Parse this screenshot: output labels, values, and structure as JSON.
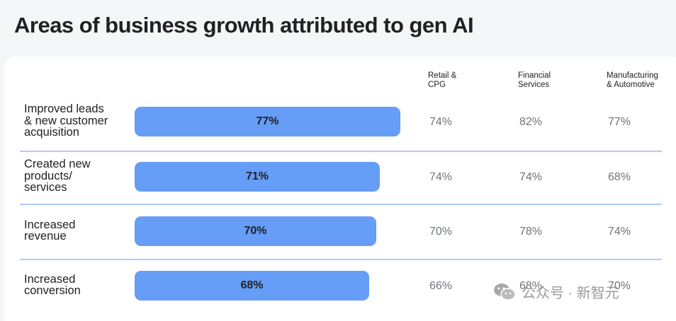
{
  "title": "Areas of business growth attributed to gen AI",
  "chart_data": {
    "type": "bar",
    "title": "Areas of business growth attributed to gen AI",
    "orientation": "horizontal",
    "categories": [
      "Improved leads\n& new customer\nacquisition",
      "Created new\nproducts/\nservices",
      "Increased\nrevenue",
      "Increased\nconversion"
    ],
    "values": [
      77,
      71,
      70,
      68
    ],
    "value_labels": [
      "77%",
      "71%",
      "70%",
      "68%"
    ],
    "xlim": [
      0,
      100
    ],
    "bar_color": "#669df6",
    "segment_columns": [
      {
        "name": "Retail &\nCPG",
        "values": [
          "74%",
          "74%",
          "70%",
          "66%"
        ]
      },
      {
        "name": "Financial\nServices",
        "values": [
          "82%",
          "74%",
          "78%",
          "68%"
        ]
      },
      {
        "name": "Manufacturing\n& Automotive",
        "values": [
          "77%",
          "68%",
          "74%",
          "70%"
        ]
      }
    ]
  },
  "watermark": {
    "text": "公众号 · 新智元",
    "icon": "wechat-icon"
  }
}
